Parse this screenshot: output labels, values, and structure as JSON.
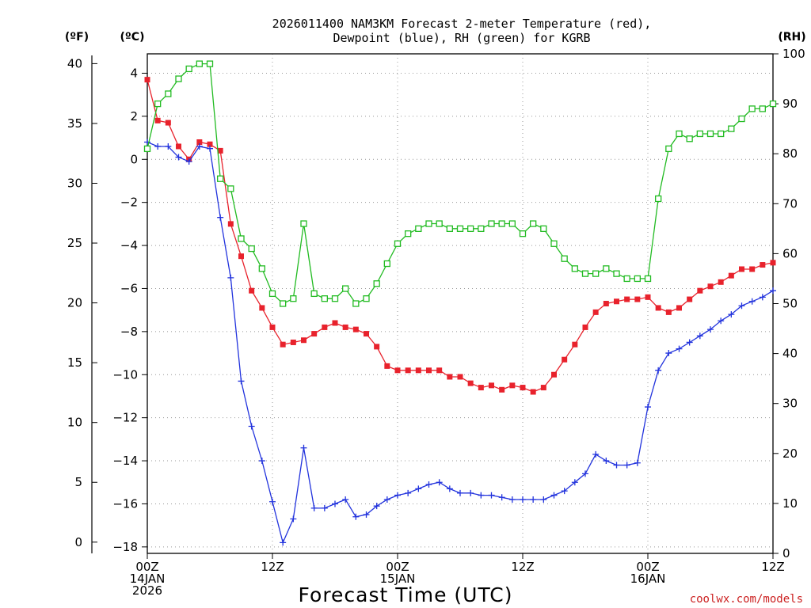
{
  "chart_data": {
    "type": "line",
    "title_line1": "2026011400 NAM3KM Forecast 2-meter Temperature (red),",
    "title_line2": "Dewpoint (blue), RH (green) for KGRB",
    "xlabel": "Forecast Time (UTC)",
    "credit": "coolwx.com/models",
    "unit_f": "(ºF)",
    "unit_c": "(ºC)",
    "unit_rh": "(RH)",
    "x_hours_range": [
      0,
      60
    ],
    "x_ticks": [
      {
        "hour": 0,
        "lines": [
          "00Z",
          "14JAN",
          "2026"
        ]
      },
      {
        "hour": 12,
        "lines": [
          "12Z"
        ]
      },
      {
        "hour": 24,
        "lines": [
          "00Z",
          "15JAN"
        ]
      },
      {
        "hour": 36,
        "lines": [
          "12Z"
        ]
      },
      {
        "hour": 48,
        "lines": [
          "00Z",
          "16JAN"
        ]
      },
      {
        "hour": 60,
        "lines": [
          "12Z"
        ]
      }
    ],
    "c_axis": {
      "range": [
        -18.3,
        4.9
      ],
      "ticks": [
        "4",
        "2",
        "0",
        "−2",
        "−4",
        "−6",
        "−8",
        "−10",
        "−12",
        "−14",
        "−16",
        "−18"
      ]
    },
    "f_axis": {
      "ticks": [
        "40",
        "35",
        "30",
        "25",
        "20",
        "15",
        "10",
        "5",
        "0"
      ]
    },
    "rh_axis": {
      "range": [
        0,
        100
      ],
      "ticks": [
        "100",
        "90",
        "80",
        "70",
        "60",
        "50",
        "40",
        "30",
        "20",
        "10",
        "0"
      ]
    },
    "series": [
      {
        "name": "Temperature (°C)",
        "color": "#e8222c",
        "marker": "filled-square",
        "hours": [
          0,
          1,
          2,
          3,
          4,
          5,
          6,
          7,
          8,
          9,
          10,
          11,
          12,
          13,
          14,
          15,
          16,
          17,
          18,
          19,
          20,
          21,
          22,
          23,
          24,
          25,
          26,
          27,
          28,
          29,
          30,
          31,
          32,
          33,
          34,
          35,
          36,
          37,
          38,
          39,
          40,
          41,
          42,
          43,
          44,
          45,
          46,
          47,
          48,
          49,
          50,
          51,
          52,
          53,
          54,
          55,
          56,
          57,
          58,
          59,
          60
        ],
        "values": [
          3.7,
          1.8,
          1.7,
          0.6,
          0.0,
          0.8,
          0.7,
          0.4,
          -3.0,
          -4.5,
          -6.1,
          -6.9,
          -7.8,
          -8.6,
          -8.5,
          -8.4,
          -8.1,
          -7.8,
          -7.6,
          -7.8,
          -7.9,
          -8.1,
          -8.7,
          -9.6,
          -9.8,
          -9.8,
          -9.8,
          -9.8,
          -9.8,
          -10.1,
          -10.1,
          -10.4,
          -10.6,
          -10.5,
          -10.7,
          -10.5,
          -10.6,
          -10.8,
          -10.6,
          -10.0,
          -9.3,
          -8.6,
          -7.8,
          -7.1,
          -6.7,
          -6.6,
          -6.5,
          -6.5,
          -6.4,
          -6.9,
          -7.1,
          -6.9,
          -6.5,
          -6.1,
          -5.9,
          -5.7,
          -5.4,
          -5.1,
          -5.1,
          -4.9,
          -4.8
        ]
      },
      {
        "name": "Dewpoint (°C)",
        "color": "#2233dd",
        "marker": "plus",
        "hours": [
          0,
          1,
          2,
          3,
          4,
          5,
          6,
          7,
          8,
          9,
          10,
          11,
          12,
          13,
          14,
          15,
          16,
          17,
          18,
          19,
          20,
          21,
          22,
          23,
          24,
          25,
          26,
          27,
          28,
          29,
          30,
          31,
          32,
          33,
          34,
          35,
          36,
          37,
          38,
          39,
          40,
          41,
          42,
          43,
          44,
          45,
          46,
          47,
          48,
          49,
          50,
          51,
          52,
          53,
          54,
          55,
          56,
          57,
          58,
          59,
          60
        ],
        "values": [
          0.8,
          0.6,
          0.6,
          0.1,
          -0.1,
          0.6,
          0.5,
          -2.7,
          -5.5,
          -10.3,
          -12.4,
          -14.0,
          -15.9,
          -17.8,
          -16.7,
          -13.4,
          -16.2,
          -16.2,
          -16.0,
          -15.8,
          -16.6,
          -16.5,
          -16.1,
          -15.8,
          -15.6,
          -15.5,
          -15.3,
          -15.1,
          -15.0,
          -15.3,
          -15.5,
          -15.5,
          -15.6,
          -15.6,
          -15.7,
          -15.8,
          -15.8,
          -15.8,
          -15.8,
          -15.6,
          -15.4,
          -15.0,
          -14.6,
          -13.7,
          -14.0,
          -14.2,
          -14.2,
          -14.1,
          -11.5,
          -9.8,
          -9.0,
          -8.8,
          -8.5,
          -8.2,
          -7.9,
          -7.5,
          -7.2,
          -6.8,
          -6.6,
          -6.4,
          -6.1
        ]
      },
      {
        "name": "Relative Humidity (%)",
        "color": "#22bb22",
        "marker": "open-square",
        "hours": [
          0,
          1,
          2,
          3,
          4,
          5,
          6,
          7,
          8,
          9,
          10,
          11,
          12,
          13,
          14,
          15,
          16,
          17,
          18,
          19,
          20,
          21,
          22,
          23,
          24,
          25,
          26,
          27,
          28,
          29,
          30,
          31,
          32,
          33,
          34,
          35,
          36,
          37,
          38,
          39,
          40,
          41,
          42,
          43,
          44,
          45,
          46,
          47,
          48,
          49,
          50,
          51,
          52,
          53,
          54,
          55,
          56,
          57,
          58,
          59,
          60
        ],
        "values": [
          81,
          90,
          92,
          95,
          97,
          98,
          98,
          75,
          73,
          63,
          61,
          57,
          52,
          50,
          51,
          66,
          52,
          51,
          51,
          53,
          50,
          51,
          54,
          58,
          62,
          64,
          65,
          66,
          66,
          65,
          65,
          65,
          65,
          66,
          66,
          66,
          64,
          66,
          65,
          62,
          59,
          57,
          56,
          56,
          57,
          56,
          55,
          55,
          55,
          71,
          81,
          84,
          83,
          84,
          84,
          84,
          85,
          87,
          89,
          89,
          90
        ]
      }
    ]
  }
}
